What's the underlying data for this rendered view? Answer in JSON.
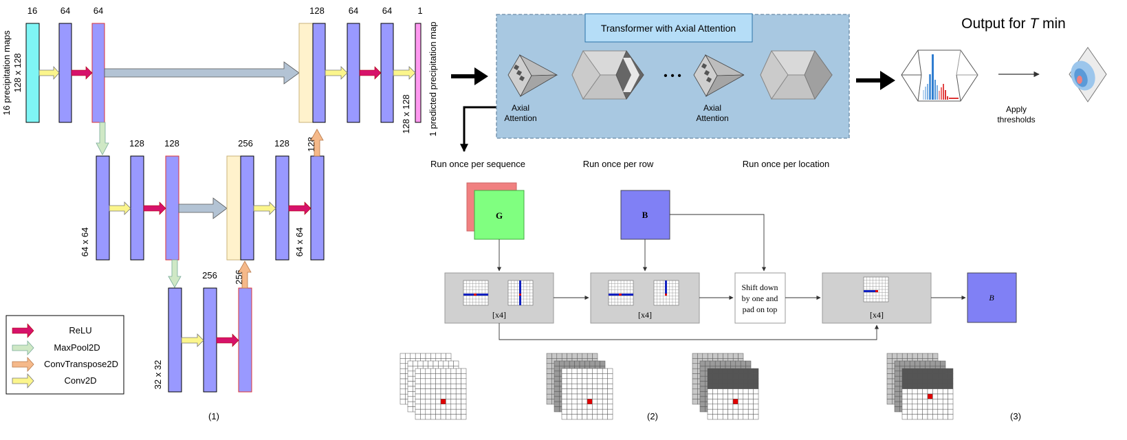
{
  "unet": {
    "enc1": {
      "ch_a": "16",
      "ch_b": "64",
      "ch_c": "64",
      "input_label": "16 precipitation  maps",
      "size": "128 x 128"
    },
    "enc2": {
      "ch_a": "128",
      "ch_b": "128",
      "size": "64 x 64"
    },
    "bottleneck": {
      "ch_a": "256",
      "ch_up": "256",
      "size": "32 x 32"
    },
    "dec2": {
      "ch_a": "256",
      "ch_b": "128",
      "ch_up": "128",
      "size": "64 x 64"
    },
    "dec1": {
      "ch_a": "128",
      "ch_b": "64",
      "ch_c": "64",
      "ch_out": "1",
      "size": "128 x 128",
      "output_label": "1 predicted precipitation  map"
    },
    "caption": "(1)"
  },
  "legend": {
    "items": [
      {
        "label": "ReLU",
        "color": "#d6126a"
      },
      {
        "label": "MaxPool2D",
        "color": "#cfe8c5"
      },
      {
        "label": "ConvTranspose2D",
        "color": "#f5b98a"
      },
      {
        "label": "Conv2D",
        "color": "#fbf58c"
      }
    ]
  },
  "transformer": {
    "title": "Transformer with Axial Attention",
    "axial_label_1a": "Axial",
    "axial_label_1b": "Attention",
    "axial_label_2a": "Axial",
    "axial_label_2b": "Attention",
    "ellipsis": "• • •"
  },
  "output": {
    "title_prefix": "Output for ",
    "title_var": "T",
    "title_suffix": " min",
    "thresholds_line1": "Apply",
    "thresholds_line2": "thresholds"
  },
  "run": {
    "per_sequence": "Run once per sequence",
    "per_row": "Run once per row",
    "per_location": "Run once per location"
  },
  "blocks": {
    "g_label": "G",
    "b_label": "B",
    "b_out_label": "B",
    "repeat_1": "[x4]",
    "repeat_2": "[x4]",
    "repeat_3": "[x4]",
    "shift_line1": "Shift down",
    "shift_line2": "by one and",
    "shift_line3": "pad on top"
  },
  "captions": {
    "two": "(2)",
    "three": "(3)"
  },
  "colors": {
    "unet_block": "#9999ff",
    "input_block": "#7ff5f5",
    "output_block": "#ff99f0",
    "skip_block": "#fff2cc",
    "skip_arrow": "#b3c3d4",
    "transformer_bg": "#a8c8e1",
    "title_box": "#b5ddf7",
    "g_front": "#80ff80",
    "g_back": "#f08080",
    "b_block": "#8080f5",
    "gray_block": "#d0d0d0"
  }
}
